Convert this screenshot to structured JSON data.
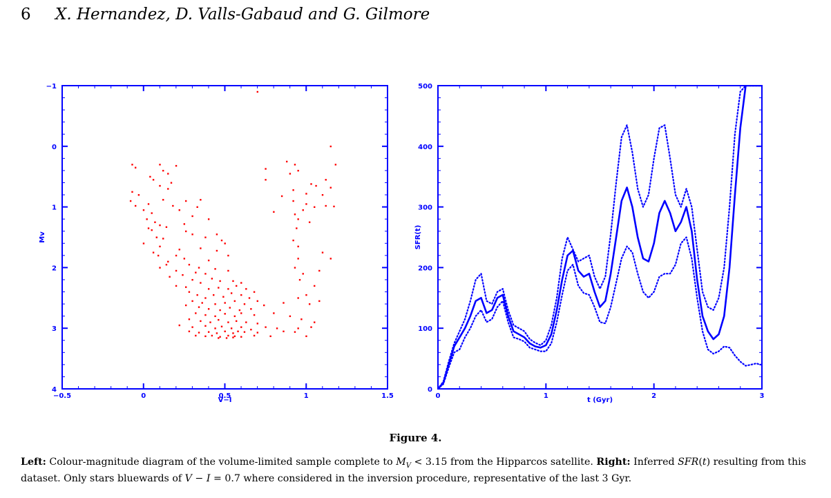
{
  "header": {
    "page_number": "6",
    "authors": "X. Hernandez, D. Valls-Gabaud and G. Gilmore"
  },
  "colors": {
    "axis": "#0000ff",
    "points": "#ff0000",
    "curves": "#0000ff"
  },
  "chart_data": [
    {
      "type": "scatter",
      "title": "",
      "xlabel": "V−I",
      "ylabel": "Mv",
      "xlim": [
        -0.5,
        1.5
      ],
      "ylim": [
        4,
        -1
      ],
      "xticks": [
        "−0.5",
        "0",
        "0.5",
        "1",
        "1.5"
      ],
      "yticks": [
        "−1",
        "0",
        "1",
        "2",
        "3",
        "4"
      ],
      "xtick_values": [
        -0.5,
        0,
        0.5,
        1,
        1.5
      ],
      "ytick_values": [
        -1,
        0,
        1,
        2,
        3,
        4
      ],
      "color": "#ff0000",
      "points": [
        [
          0.7,
          -0.9
        ],
        [
          0.9,
          0.45
        ],
        [
          1.15,
          0.0
        ],
        [
          1.18,
          0.3
        ],
        [
          -0.07,
          0.3
        ],
        [
          -0.05,
          0.35
        ],
        [
          0.1,
          0.3
        ],
        [
          0.12,
          0.4
        ],
        [
          0.2,
          0.32
        ],
        [
          0.15,
          0.45
        ],
        [
          0.88,
          0.25
        ],
        [
          0.93,
          0.3
        ],
        [
          0.75,
          0.37
        ],
        [
          0.95,
          0.4
        ],
        [
          0.06,
          0.55
        ],
        [
          0.1,
          0.65
        ],
        [
          0.15,
          0.7
        ],
        [
          0.17,
          0.6
        ],
        [
          0.04,
          0.5
        ],
        [
          0.75,
          0.55
        ],
        [
          1.03,
          0.62
        ],
        [
          1.06,
          0.65
        ],
        [
          1.12,
          0.55
        ],
        [
          1.15,
          0.68
        ],
        [
          -0.07,
          0.75
        ],
        [
          -0.03,
          0.8
        ],
        [
          0.85,
          0.82
        ],
        [
          0.92,
          0.72
        ],
        [
          1.0,
          0.78
        ],
        [
          1.1,
          0.8
        ],
        [
          -0.08,
          0.9
        ],
        [
          -0.05,
          0.98
        ],
        [
          0.03,
          0.95
        ],
        [
          0.12,
          0.88
        ],
        [
          0.18,
          0.98
        ],
        [
          0.26,
          0.9
        ],
        [
          0.35,
          0.88
        ],
        [
          0.92,
          0.9
        ],
        [
          1.0,
          0.95
        ],
        [
          1.05,
          1.0
        ],
        [
          1.12,
          0.98
        ],
        [
          1.17,
          0.99
        ],
        [
          0.0,
          1.05
        ],
        [
          0.05,
          1.1
        ],
        [
          0.22,
          1.05
        ],
        [
          0.3,
          1.15
        ],
        [
          0.33,
          1.0
        ],
        [
          0.8,
          1.08
        ],
        [
          0.93,
          1.12
        ],
        [
          0.98,
          1.05
        ],
        [
          0.02,
          1.2
        ],
        [
          0.07,
          1.25
        ],
        [
          0.1,
          1.3
        ],
        [
          0.25,
          1.28
        ],
        [
          0.4,
          1.2
        ],
        [
          0.95,
          1.2
        ],
        [
          1.02,
          1.25
        ],
        [
          0.03,
          1.35
        ],
        [
          0.05,
          1.38
        ],
        [
          0.14,
          1.33
        ],
        [
          0.26,
          1.4
        ],
        [
          0.45,
          1.45
        ],
        [
          0.94,
          1.35
        ],
        [
          0.08,
          1.5
        ],
        [
          0.12,
          1.52
        ],
        [
          0.3,
          1.45
        ],
        [
          0.38,
          1.5
        ],
        [
          0.48,
          1.55
        ],
        [
          0.5,
          1.6
        ],
        [
          0.92,
          1.55
        ],
        [
          0.0,
          1.6
        ],
        [
          0.1,
          1.65
        ],
        [
          0.22,
          1.7
        ],
        [
          0.35,
          1.68
        ],
        [
          0.45,
          1.72
        ],
        [
          0.95,
          1.65
        ],
        [
          0.06,
          1.75
        ],
        [
          0.09,
          1.8
        ],
        [
          0.2,
          1.8
        ],
        [
          0.15,
          1.9
        ],
        [
          0.25,
          1.85
        ],
        [
          0.4,
          1.88
        ],
        [
          0.52,
          1.8
        ],
        [
          1.1,
          1.75
        ],
        [
          1.15,
          1.85
        ],
        [
          0.95,
          1.85
        ],
        [
          0.14,
          1.95
        ],
        [
          0.1,
          2.0
        ],
        [
          0.28,
          1.95
        ],
        [
          0.34,
          2.0
        ],
        [
          0.44,
          2.02
        ],
        [
          0.52,
          2.05
        ],
        [
          0.32,
          2.08
        ],
        [
          0.38,
          2.1
        ],
        [
          0.2,
          2.05
        ],
        [
          0.93,
          2.0
        ],
        [
          0.98,
          2.1
        ],
        [
          1.08,
          2.05
        ],
        [
          0.16,
          2.15
        ],
        [
          0.24,
          2.12
        ],
        [
          0.3,
          2.2
        ],
        [
          0.42,
          2.18
        ],
        [
          0.47,
          2.22
        ],
        [
          0.55,
          2.22
        ],
        [
          0.6,
          2.25
        ],
        [
          0.35,
          2.25
        ],
        [
          0.96,
          2.2
        ],
        [
          1.05,
          2.3
        ],
        [
          0.2,
          2.3
        ],
        [
          0.26,
          2.32
        ],
        [
          0.4,
          2.35
        ],
        [
          0.46,
          2.33
        ],
        [
          0.52,
          2.35
        ],
        [
          0.57,
          2.3
        ],
        [
          0.63,
          2.35
        ],
        [
          0.68,
          2.4
        ],
        [
          0.28,
          2.4
        ],
        [
          0.33,
          2.45
        ],
        [
          0.43,
          2.45
        ],
        [
          0.49,
          2.48
        ],
        [
          0.54,
          2.42
        ],
        [
          0.6,
          2.45
        ],
        [
          0.65,
          2.5
        ],
        [
          0.38,
          2.5
        ],
        [
          0.95,
          2.5
        ],
        [
          1.0,
          2.45
        ],
        [
          0.3,
          2.55
        ],
        [
          0.36,
          2.58
        ],
        [
          0.44,
          2.6
        ],
        [
          0.5,
          2.58
        ],
        [
          0.56,
          2.55
        ],
        [
          0.62,
          2.6
        ],
        [
          0.7,
          2.55
        ],
        [
          0.26,
          2.62
        ],
        [
          0.34,
          2.65
        ],
        [
          0.4,
          2.68
        ],
        [
          0.47,
          2.7
        ],
        [
          0.53,
          2.66
        ],
        [
          0.59,
          2.7
        ],
        [
          0.66,
          2.68
        ],
        [
          0.74,
          2.62
        ],
        [
          0.86,
          2.58
        ],
        [
          1.02,
          2.6
        ],
        [
          1.08,
          2.55
        ],
        [
          0.32,
          2.75
        ],
        [
          0.38,
          2.78
        ],
        [
          0.44,
          2.8
        ],
        [
          0.5,
          2.76
        ],
        [
          0.56,
          2.8
        ],
        [
          0.6,
          2.75
        ],
        [
          0.68,
          2.78
        ],
        [
          0.8,
          2.75
        ],
        [
          0.9,
          2.8
        ],
        [
          0.28,
          2.85
        ],
        [
          0.35,
          2.88
        ],
        [
          0.41,
          2.9
        ],
        [
          0.46,
          2.86
        ],
        [
          0.52,
          2.9
        ],
        [
          0.57,
          2.88
        ],
        [
          0.63,
          2.9
        ],
        [
          0.7,
          2.92
        ],
        [
          0.97,
          2.85
        ],
        [
          1.05,
          2.9
        ],
        [
          0.22,
          2.95
        ],
        [
          0.3,
          2.98
        ],
        [
          0.38,
          2.96
        ],
        [
          0.44,
          3.0
        ],
        [
          0.48,
          2.97
        ],
        [
          0.54,
          3.0
        ],
        [
          0.6,
          2.98
        ],
        [
          0.66,
          3.02
        ],
        [
          0.75,
          2.98
        ],
        [
          0.82,
          3.0
        ],
        [
          0.95,
          3.0
        ],
        [
          1.03,
          2.98
        ],
        [
          0.28,
          3.05
        ],
        [
          0.34,
          3.07
        ],
        [
          0.4,
          3.06
        ],
        [
          0.45,
          3.08
        ],
        [
          0.5,
          3.05
        ],
        [
          0.55,
          3.08
        ],
        [
          0.58,
          3.05
        ],
        [
          0.62,
          3.06
        ],
        [
          0.7,
          3.07
        ],
        [
          0.86,
          3.05
        ],
        [
          0.93,
          3.06
        ],
        [
          0.32,
          3.12
        ],
        [
          0.38,
          3.13
        ],
        [
          0.42,
          3.12
        ],
        [
          0.47,
          3.14
        ],
        [
          0.52,
          3.12
        ],
        [
          0.56,
          3.13
        ],
        [
          0.6,
          3.14
        ],
        [
          0.68,
          3.12
        ],
        [
          0.78,
          3.13
        ],
        [
          1.0,
          3.13
        ],
        [
          0.46,
          3.16
        ],
        [
          0.51,
          3.16
        ],
        [
          0.55,
          3.15
        ]
      ]
    },
    {
      "type": "line",
      "title": "",
      "xlabel": "t (Gyr)",
      "ylabel": "SFR(t)",
      "xlim": [
        0,
        3
      ],
      "ylim": [
        0,
        500
      ],
      "xticks": [
        "0",
        "1",
        "2",
        "3"
      ],
      "yticks": [
        "0",
        "100",
        "200",
        "300",
        "400",
        "500"
      ],
      "xtick_values": [
        0,
        1,
        2,
        3
      ],
      "ytick_values": [
        0,
        100,
        200,
        300,
        400,
        500
      ],
      "series": [
        {
          "name": "SFR",
          "style": "solid",
          "x": [
            0.0,
            0.05,
            0.1,
            0.15,
            0.2,
            0.25,
            0.3,
            0.35,
            0.4,
            0.45,
            0.5,
            0.55,
            0.6,
            0.65,
            0.7,
            0.75,
            0.8,
            0.85,
            0.9,
            0.95,
            1.0,
            1.05,
            1.1,
            1.15,
            1.2,
            1.25,
            1.3,
            1.35,
            1.4,
            1.45,
            1.5,
            1.55,
            1.6,
            1.65,
            1.7,
            1.75,
            1.8,
            1.85,
            1.9,
            1.95,
            2.0,
            2.05,
            2.1,
            2.15,
            2.2,
            2.25,
            2.3,
            2.35,
            2.4,
            2.45,
            2.5,
            2.55,
            2.6,
            2.65,
            2.7,
            2.75,
            2.8,
            2.85,
            2.9,
            2.95,
            2.98,
            3.0
          ],
          "y": [
            0,
            10,
            40,
            70,
            85,
            100,
            120,
            145,
            150,
            125,
            130,
            150,
            155,
            120,
            95,
            90,
            85,
            75,
            70,
            68,
            72,
            90,
            130,
            180,
            220,
            228,
            195,
            185,
            190,
            160,
            135,
            145,
            190,
            250,
            310,
            332,
            300,
            250,
            215,
            210,
            240,
            290,
            310,
            290,
            260,
            275,
            300,
            260,
            180,
            120,
            95,
            82,
            90,
            120,
            200,
            320,
            430,
            500,
            500,
            500,
            500,
            500
          ]
        },
        {
          "name": "upper",
          "style": "dotted",
          "x": [
            0.0,
            0.05,
            0.1,
            0.15,
            0.2,
            0.25,
            0.3,
            0.35,
            0.4,
            0.45,
            0.5,
            0.55,
            0.6,
            0.65,
            0.7,
            0.75,
            0.8,
            0.85,
            0.9,
            0.95,
            1.0,
            1.05,
            1.1,
            1.15,
            1.2,
            1.25,
            1.3,
            1.35,
            1.4,
            1.45,
            1.5,
            1.55,
            1.6,
            1.65,
            1.7,
            1.75,
            1.8,
            1.85,
            1.9,
            1.95,
            2.0,
            2.05,
            2.1,
            2.15,
            2.2,
            2.25,
            2.3,
            2.35,
            2.4,
            2.45,
            2.5,
            2.55,
            2.6,
            2.65,
            2.7,
            2.75,
            2.8,
            2.85,
            2.9,
            2.95,
            2.98,
            3.0
          ],
          "y": [
            0,
            12,
            45,
            75,
            95,
            115,
            145,
            180,
            190,
            145,
            140,
            160,
            165,
            130,
            105,
            100,
            95,
            82,
            76,
            72,
            80,
            105,
            150,
            215,
            250,
            230,
            210,
            215,
            220,
            185,
            165,
            185,
            255,
            340,
            415,
            435,
            390,
            330,
            300,
            320,
            380,
            430,
            435,
            380,
            320,
            300,
            330,
            300,
            230,
            160,
            135,
            130,
            150,
            200,
            300,
            420,
            490,
            500,
            500,
            500,
            500,
            500
          ]
        },
        {
          "name": "lower",
          "style": "dotted",
          "x": [
            0.0,
            0.05,
            0.1,
            0.15,
            0.2,
            0.25,
            0.3,
            0.35,
            0.4,
            0.45,
            0.5,
            0.55,
            0.6,
            0.65,
            0.7,
            0.75,
            0.8,
            0.85,
            0.9,
            0.95,
            1.0,
            1.05,
            1.1,
            1.15,
            1.2,
            1.25,
            1.3,
            1.35,
            1.4,
            1.45,
            1.5,
            1.55,
            1.6,
            1.65,
            1.7,
            1.75,
            1.8,
            1.85,
            1.9,
            1.95,
            2.0,
            2.05,
            2.1,
            2.15,
            2.2,
            2.25,
            2.3,
            2.35,
            2.4,
            2.45,
            2.5,
            2.55,
            2.6,
            2.65,
            2.7,
            2.75,
            2.8,
            2.85,
            2.9,
            2.95,
            2.98,
            3.0
          ],
          "y": [
            0,
            8,
            35,
            60,
            65,
            85,
            100,
            120,
            130,
            110,
            115,
            135,
            145,
            110,
            85,
            82,
            78,
            68,
            65,
            62,
            62,
            75,
            110,
            155,
            195,
            205,
            170,
            158,
            155,
            135,
            110,
            108,
            135,
            175,
            215,
            235,
            225,
            190,
            160,
            150,
            160,
            185,
            190,
            190,
            205,
            240,
            250,
            215,
            150,
            95,
            65,
            58,
            62,
            70,
            68,
            55,
            45,
            38,
            40,
            42,
            40,
            40
          ]
        }
      ]
    }
  ],
  "figure": {
    "title": "Figure 4.",
    "caption": [
      {
        "text": "Left:",
        "bold": true
      },
      {
        "text": " Colour-magnitude diagram of the volume-limited sample complete to "
      },
      {
        "text": "M",
        "italic": true
      },
      {
        "text": "V",
        "sub": true
      },
      {
        "text": " < 3.15 from the Hipparcos satellite. "
      },
      {
        "text": "Right:",
        "bold": true
      },
      {
        "text": " Inferred "
      },
      {
        "text": "SFR",
        "italic": true
      },
      {
        "text": "("
      },
      {
        "text": "t",
        "italic": true
      },
      {
        "text": ") resulting from this dataset. Only stars bluewards of "
      },
      {
        "text": "V",
        "italic": true
      },
      {
        "text": " − "
      },
      {
        "text": "I",
        "italic": true
      },
      {
        "text": " = 0.7 where considered in the inversion procedure, representative of the last 3 Gyr."
      }
    ]
  }
}
